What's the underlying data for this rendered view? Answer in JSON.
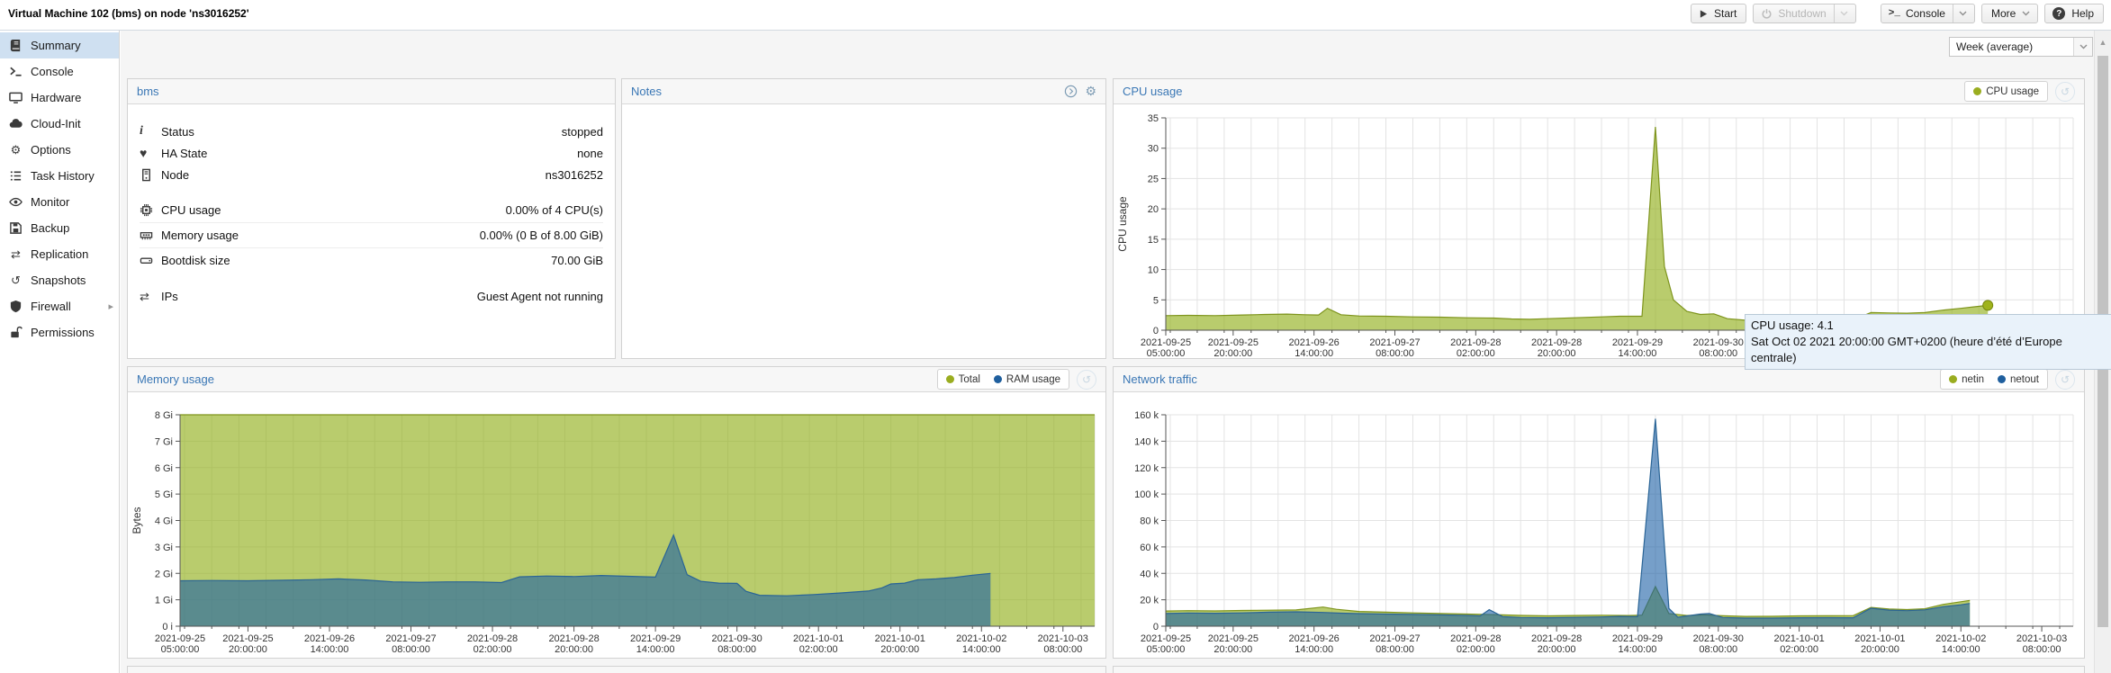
{
  "window": {
    "title": "Virtual Machine 102 (bms) on node 'ns3016252'"
  },
  "toolbar": {
    "start": "Start",
    "shutdown": "Shutdown",
    "console": "Console",
    "more": "More",
    "help": "Help"
  },
  "period_selector": {
    "value": "Week (average)"
  },
  "sidebar": {
    "items": [
      {
        "label": "Summary",
        "icon": "book-icon",
        "selected": true
      },
      {
        "label": "Console",
        "icon": "terminal-icon"
      },
      {
        "label": "Hardware",
        "icon": "display-icon"
      },
      {
        "label": "Cloud-Init",
        "icon": "cloud-icon"
      },
      {
        "label": "Options",
        "icon": "gear-icon"
      },
      {
        "label": "Task History",
        "icon": "list-icon"
      },
      {
        "label": "Monitor",
        "icon": "eye-icon"
      },
      {
        "label": "Backup",
        "icon": "floppy-icon"
      },
      {
        "label": "Replication",
        "icon": "sync-icon"
      },
      {
        "label": "Snapshots",
        "icon": "history-icon"
      },
      {
        "label": "Firewall",
        "icon": "shield-icon",
        "submenu": true
      },
      {
        "label": "Permissions",
        "icon": "unlock-icon"
      }
    ]
  },
  "status_panel": {
    "title": "bms",
    "rows": [
      {
        "icon": "info-icon",
        "label": "Status",
        "value": "stopped"
      },
      {
        "icon": "heartbeat-icon",
        "label": "HA State",
        "value": "none"
      },
      {
        "icon": "server-icon",
        "label": "Node",
        "value": "ns3016252"
      },
      {
        "icon": "cpu-icon",
        "label": "CPU usage",
        "value": "0.00% of 4 CPU(s)",
        "gap_before": true,
        "sep": true,
        "usage": true
      },
      {
        "icon": "memory-icon",
        "label": "Memory usage",
        "value": "0.00% (0 B of 8.00 GiB)",
        "sep": true,
        "usage": true
      },
      {
        "icon": "disk-icon",
        "label": "Bootdisk size",
        "value": "70.00 GiB",
        "usage": true
      },
      {
        "icon": "arrows-icon",
        "label": "IPs",
        "value": "Guest Agent not running",
        "gap_before": true
      }
    ]
  },
  "notes_panel": {
    "title": "Notes"
  },
  "tooltip": {
    "line1": "CPU usage: 4.1",
    "line2": "Sat Oct 02 2021 20:00:00 GMT+0200 (heure d’été d’Europe centrale)"
  },
  "chart_data": [
    {
      "type": "area",
      "title": "CPU usage",
      "ylabel": "CPU usage",
      "ylim": [
        0,
        35
      ],
      "yticks": [
        0,
        5,
        10,
        15,
        20,
        25,
        30,
        35
      ],
      "ytick_labels": [
        "0",
        "5",
        "10",
        "15",
        "20",
        "25",
        "30",
        "35"
      ],
      "xlim": [
        5,
        207
      ],
      "grid_step": 6,
      "x_unit": "hours since 2021-09-25 00:00",
      "xticks": [
        [
          5,
          "2021-09-25",
          "05:00:00"
        ],
        [
          20,
          "2021-09-25",
          "20:00:00"
        ],
        [
          38,
          "2021-09-26",
          "14:00:00"
        ],
        [
          56,
          "2021-09-27",
          "08:00:00"
        ],
        [
          74,
          "2021-09-28",
          "02:00:00"
        ],
        [
          92,
          "2021-09-28",
          "20:00:00"
        ],
        [
          110,
          "2021-09-29",
          "14:00:00"
        ],
        [
          128,
          "2021-09-30",
          "08:00:00"
        ],
        [
          146,
          "2021-10-01",
          "02:00:00"
        ],
        [
          164,
          "2021-10-01",
          "20:00:00"
        ],
        [
          182,
          "2021-10-02",
          "14:00:00"
        ],
        [
          200,
          "2021-10-03",
          "08:00:00"
        ]
      ],
      "legend": [
        {
          "label": "CPU usage",
          "color": "#9aad20"
        }
      ],
      "series": [
        {
          "name": "CPU usage",
          "line": "#7e941c",
          "fill": "rgba(148,176,31,0.65)",
          "end_marker": true,
          "points": [
            [
              5,
              2.4
            ],
            [
              10,
              2.45
            ],
            [
              16,
              2.4
            ],
            [
              22,
              2.5
            ],
            [
              27,
              2.6
            ],
            [
              32,
              2.65
            ],
            [
              36,
              2.55
            ],
            [
              39,
              2.5
            ],
            [
              41,
              3.6
            ],
            [
              44,
              2.55
            ],
            [
              48,
              2.35
            ],
            [
              54,
              2.3
            ],
            [
              60,
              2.2
            ],
            [
              66,
              2.15
            ],
            [
              72,
              2.05
            ],
            [
              78,
              2.0
            ],
            [
              82,
              1.85
            ],
            [
              86,
              1.8
            ],
            [
              90,
              1.9
            ],
            [
              96,
              2.05
            ],
            [
              102,
              2.2
            ],
            [
              106,
              2.3
            ],
            [
              111,
              2.3
            ],
            [
              114,
              33.5
            ],
            [
              116,
              10.5
            ],
            [
              118,
              5.0
            ],
            [
              121,
              3.1
            ],
            [
              124,
              2.6
            ],
            [
              127,
              2.7
            ],
            [
              130,
              1.9
            ],
            [
              134,
              1.65
            ],
            [
              140,
              1.6
            ],
            [
              146,
              1.6
            ],
            [
              152,
              1.65
            ],
            [
              158,
              1.7
            ],
            [
              162,
              2.9
            ],
            [
              166,
              2.85
            ],
            [
              170,
              2.8
            ],
            [
              174,
              2.9
            ],
            [
              178,
              3.3
            ],
            [
              182,
              3.6
            ],
            [
              185,
              3.85
            ],
            [
              188,
              4.1
            ]
          ]
        }
      ]
    },
    {
      "type": "area",
      "title": "Memory usage",
      "ylabel": "Bytes",
      "ylim": [
        0,
        8
      ],
      "yticks": [
        0,
        1,
        2,
        3,
        4,
        5,
        6,
        7,
        8
      ],
      "ytick_labels": [
        "0 i",
        "1 Gi",
        "2 Gi",
        "3 Gi",
        "4 Gi",
        "5 Gi",
        "6 Gi",
        "7 Gi",
        "8 Gi"
      ],
      "xlim": [
        5,
        207
      ],
      "grid_step": 6,
      "x_unit": "hours since 2021-09-25 00:00",
      "xticks": [
        [
          5,
          "2021-09-25",
          "05:00:00"
        ],
        [
          20,
          "2021-09-25",
          "20:00:00"
        ],
        [
          38,
          "2021-09-26",
          "14:00:00"
        ],
        [
          56,
          "2021-09-27",
          "08:00:00"
        ],
        [
          74,
          "2021-09-28",
          "02:00:00"
        ],
        [
          92,
          "2021-09-28",
          "20:00:00"
        ],
        [
          110,
          "2021-09-29",
          "14:00:00"
        ],
        [
          128,
          "2021-09-30",
          "08:00:00"
        ],
        [
          146,
          "2021-10-01",
          "02:00:00"
        ],
        [
          164,
          "2021-10-01",
          "20:00:00"
        ],
        [
          182,
          "2021-10-02",
          "14:00:00"
        ],
        [
          200,
          "2021-10-03",
          "08:00:00"
        ]
      ],
      "legend": [
        {
          "label": "Total",
          "color": "#9aad20"
        },
        {
          "label": "RAM usage",
          "color": "#1f5f9e"
        }
      ],
      "series": [
        {
          "name": "Total",
          "line": "#7e941c",
          "fill": "rgba(148,176,31,0.65)",
          "points": [
            [
              5,
              8
            ],
            [
              207,
              8
            ]
          ]
        },
        {
          "name": "RAM usage",
          "line": "#2a6496",
          "fill": "rgba(26,95,165,0.6)",
          "points": [
            [
              5,
              1.72
            ],
            [
              12,
              1.73
            ],
            [
              20,
              1.72
            ],
            [
              28,
              1.74
            ],
            [
              34,
              1.76
            ],
            [
              40,
              1.79
            ],
            [
              46,
              1.75
            ],
            [
              52,
              1.68
            ],
            [
              58,
              1.66
            ],
            [
              64,
              1.68
            ],
            [
              70,
              1.68
            ],
            [
              76,
              1.65
            ],
            [
              80,
              1.87
            ],
            [
              86,
              1.9
            ],
            [
              92,
              1.88
            ],
            [
              98,
              1.92
            ],
            [
              104,
              1.89
            ],
            [
              110,
              1.86
            ],
            [
              114,
              3.45
            ],
            [
              117,
              1.95
            ],
            [
              120,
              1.7
            ],
            [
              124,
              1.63
            ],
            [
              128,
              1.62
            ],
            [
              130,
              1.32
            ],
            [
              133,
              1.17
            ],
            [
              139,
              1.15
            ],
            [
              145,
              1.2
            ],
            [
              151,
              1.26
            ],
            [
              157,
              1.33
            ],
            [
              160,
              1.45
            ],
            [
              162,
              1.6
            ],
            [
              165,
              1.63
            ],
            [
              168,
              1.76
            ],
            [
              172,
              1.79
            ],
            [
              176,
              1.84
            ],
            [
              180,
              1.93
            ],
            [
              184,
              2.0
            ]
          ]
        }
      ]
    },
    {
      "type": "area",
      "title": "Network traffic",
      "ylabel": "",
      "ylim": [
        0,
        160
      ],
      "yticks": [
        0,
        20,
        40,
        60,
        80,
        100,
        120,
        140,
        160
      ],
      "ytick_labels": [
        "0",
        "20 k",
        "40 k",
        "60 k",
        "80 k",
        "100 k",
        "120 k",
        "140 k",
        "160 k"
      ],
      "xlim": [
        5,
        207
      ],
      "grid_step": 6,
      "x_unit": "hours since 2021-09-25 00:00",
      "xticks": [
        [
          5,
          "2021-09-25",
          "05:00:00"
        ],
        [
          20,
          "2021-09-25",
          "20:00:00"
        ],
        [
          38,
          "2021-09-26",
          "14:00:00"
        ],
        [
          56,
          "2021-09-27",
          "08:00:00"
        ],
        [
          74,
          "2021-09-28",
          "02:00:00"
        ],
        [
          92,
          "2021-09-28",
          "20:00:00"
        ],
        [
          110,
          "2021-09-29",
          "14:00:00"
        ],
        [
          128,
          "2021-09-30",
          "08:00:00"
        ],
        [
          146,
          "2021-10-01",
          "02:00:00"
        ],
        [
          164,
          "2021-10-01",
          "20:00:00"
        ],
        [
          182,
          "2021-10-02",
          "14:00:00"
        ],
        [
          200,
          "2021-10-03",
          "08:00:00"
        ]
      ],
      "legend": [
        {
          "label": "netin",
          "color": "#9aad20"
        },
        {
          "label": "netout",
          "color": "#1f5f9e"
        }
      ],
      "series": [
        {
          "name": "netin",
          "line": "#7e941c",
          "fill": "rgba(148,176,31,0.65)",
          "points": [
            [
              5,
              11.5
            ],
            [
              10,
              11.8
            ],
            [
              16,
              11.6
            ],
            [
              22,
              11.9
            ],
            [
              28,
              12.1
            ],
            [
              34,
              12.3
            ],
            [
              40,
              14.5
            ],
            [
              43,
              12.8
            ],
            [
              48,
              11.2
            ],
            [
              54,
              10.6
            ],
            [
              60,
              10.1
            ],
            [
              66,
              9.6
            ],
            [
              72,
              9.2
            ],
            [
              78,
              8.8
            ],
            [
              84,
              8.2
            ],
            [
              90,
              7.8
            ],
            [
              96,
              8.1
            ],
            [
              102,
              8.3
            ],
            [
              108,
              8.1
            ],
            [
              111,
              8.4
            ],
            [
              114,
              30
            ],
            [
              117,
              9.5
            ],
            [
              121,
              8.1
            ],
            [
              125,
              8.6
            ],
            [
              129,
              7.9
            ],
            [
              134,
              7.4
            ],
            [
              140,
              7.5
            ],
            [
              146,
              7.8
            ],
            [
              152,
              7.9
            ],
            [
              158,
              8.0
            ],
            [
              162,
              14.2
            ],
            [
              166,
              13.0
            ],
            [
              170,
              12.6
            ],
            [
              174,
              13.2
            ],
            [
              178,
              16.5
            ],
            [
              182,
              18.5
            ],
            [
              184,
              19.5
            ]
          ]
        },
        {
          "name": "netout",
          "line": "#2a6496",
          "fill": "rgba(26,95,165,0.6)",
          "points": [
            [
              5,
              9.6
            ],
            [
              10,
              10.0
            ],
            [
              16,
              9.8
            ],
            [
              22,
              10.1
            ],
            [
              28,
              10.6
            ],
            [
              34,
              10.9
            ],
            [
              40,
              10.4
            ],
            [
              44,
              9.9
            ],
            [
              48,
              9.5
            ],
            [
              54,
              9.2
            ],
            [
              60,
              8.9
            ],
            [
              66,
              8.6
            ],
            [
              72,
              8.2
            ],
            [
              75,
              7.8
            ],
            [
              77,
              12.5
            ],
            [
              80,
              7.2
            ],
            [
              84,
              6.6
            ],
            [
              90,
              6.4
            ],
            [
              96,
              6.7
            ],
            [
              102,
              7.0
            ],
            [
              106,
              7.4
            ],
            [
              110,
              7.2
            ],
            [
              114,
              157
            ],
            [
              117,
              13.5
            ],
            [
              119,
              6.8
            ],
            [
              124,
              9.2
            ],
            [
              126,
              9.6
            ],
            [
              129,
              6.6
            ],
            [
              134,
              6.1
            ],
            [
              140,
              6.1
            ],
            [
              146,
              6.4
            ],
            [
              152,
              6.5
            ],
            [
              158,
              6.4
            ],
            [
              162,
              13.6
            ],
            [
              166,
              12.2
            ],
            [
              170,
              11.8
            ],
            [
              174,
              12.4
            ],
            [
              178,
              14.8
            ],
            [
              182,
              16.2
            ],
            [
              184,
              17.2
            ]
          ]
        }
      ]
    }
  ]
}
